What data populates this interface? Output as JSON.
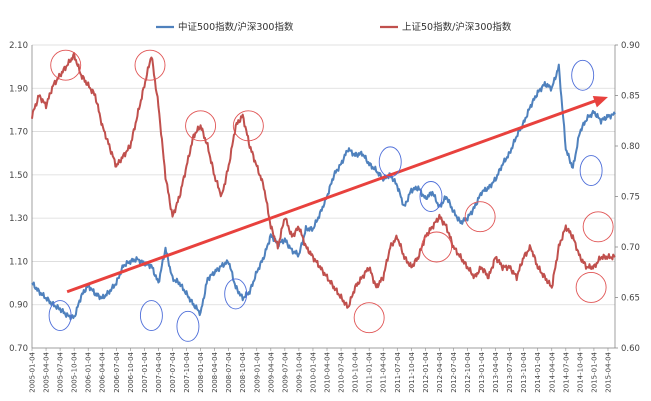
{
  "chart_data": {
    "type": "line",
    "legend": [
      {
        "name": "中证500指数/沪深300指数",
        "color": "#4f81bd",
        "axis": "left"
      },
      {
        "name": "上证50指数/沪深300指数",
        "color": "#c0504d",
        "axis": "right"
      }
    ],
    "legend_placement": "top",
    "grid": true,
    "left_axis": {
      "ticks": [
        "0.70",
        "0.90",
        "1.10",
        "1.30",
        "1.50",
        "1.70",
        "1.90",
        "2.10"
      ],
      "ylim": [
        0.7,
        2.1
      ]
    },
    "right_axis": {
      "ticks": [
        "0.60",
        "0.65",
        "0.70",
        "0.75",
        "0.80",
        "0.85",
        "0.90"
      ],
      "ylim": [
        0.6,
        0.9
      ]
    },
    "x_labels": [
      "2005-01-04",
      "2005-04-04",
      "2005-07-04",
      "2005-10-04",
      "2006-01-04",
      "2006-04-04",
      "2006-07-04",
      "2006-10-04",
      "2007-01-04",
      "2007-04-04",
      "2007-07-04",
      "2007-10-04",
      "2008-01-04",
      "2008-04-04",
      "2008-07-04",
      "2008-10-04",
      "2009-01-04",
      "2009-04-04",
      "2009-07-04",
      "2009-10-04",
      "2010-01-04",
      "2010-04-04",
      "2010-07-04",
      "2010-10-04",
      "2011-01-04",
      "2011-04-04",
      "2011-07-04",
      "2011-10-04",
      "2012-01-04",
      "2012-04-04",
      "2012-07-04",
      "2012-10-04",
      "2013-01-04",
      "2013-04-04",
      "2013-07-04",
      "2013-10-04",
      "2014-01-04",
      "2014-04-04",
      "2014-07-04",
      "2014-10-04",
      "2015-01-04",
      "2015-04-04"
    ],
    "series": [
      {
        "name": "中证500指数/沪深300指数",
        "axis": "left",
        "color": "#4f81bd",
        "x": [
          0,
          0.5,
          1,
          1.5,
          2,
          2.5,
          3,
          3.5,
          4,
          4.5,
          5,
          5.5,
          6,
          6.5,
          7,
          7.5,
          8,
          8.5,
          9,
          9.5,
          10,
          10.5,
          11,
          11.5,
          12,
          12.5,
          13,
          13.5,
          14,
          14.5,
          15,
          15.5,
          16,
          16.5,
          17,
          17.5,
          18,
          18.5,
          19,
          19.5,
          20,
          20.5,
          21,
          21.5,
          22,
          22.5,
          23,
          23.5,
          24,
          24.5,
          25,
          25.5,
          26,
          26.5,
          27,
          27.5,
          28,
          28.5,
          29,
          29.5,
          30,
          30.5,
          31,
          31.5,
          32,
          32.5,
          33,
          33.5,
          34,
          34.5,
          35,
          35.5,
          36,
          36.5,
          37,
          37.5,
          38,
          38.5,
          39,
          39.5,
          40,
          40.5,
          41,
          41.5
        ],
        "values": [
          1.0,
          0.96,
          0.93,
          0.9,
          0.88,
          0.85,
          0.84,
          0.94,
          0.99,
          0.95,
          0.93,
          0.96,
          1.0,
          1.08,
          1.1,
          1.11,
          1.09,
          1.08,
          1.0,
          1.16,
          1.02,
          1.0,
          0.95,
          0.9,
          0.86,
          1.02,
          1.05,
          1.08,
          1.1,
          0.98,
          0.93,
          0.96,
          1.05,
          1.12,
          1.22,
          1.18,
          1.2,
          1.15,
          1.13,
          1.25,
          1.25,
          1.32,
          1.4,
          1.5,
          1.55,
          1.62,
          1.59,
          1.6,
          1.55,
          1.52,
          1.48,
          1.5,
          1.45,
          1.35,
          1.43,
          1.44,
          1.39,
          1.42,
          1.35,
          1.4,
          1.33,
          1.28,
          1.3,
          1.35,
          1.42,
          1.44,
          1.48,
          1.55,
          1.6,
          1.68,
          1.74,
          1.82,
          1.88,
          1.92,
          1.9,
          2.0,
          1.62,
          1.53,
          1.7,
          1.76,
          1.79,
          1.75,
          1.77,
          1.78
        ]
      },
      {
        "name": "上证50指数/沪深300指数",
        "axis": "right",
        "color": "#c0504d",
        "x": [
          0,
          0.5,
          1,
          1.5,
          2,
          2.5,
          3,
          3.5,
          4,
          4.5,
          5,
          5.5,
          6,
          6.5,
          7,
          7.5,
          8,
          8.5,
          9,
          9.5,
          10,
          10.5,
          11,
          11.5,
          12,
          12.5,
          13,
          13.5,
          14,
          14.5,
          15,
          15.5,
          16,
          16.5,
          17,
          17.5,
          18,
          18.5,
          19,
          19.5,
          20,
          20.5,
          21,
          21.5,
          22,
          22.5,
          23,
          23.5,
          24,
          24.5,
          25,
          25.5,
          26,
          26.5,
          27,
          27.5,
          28,
          28.5,
          29,
          29.5,
          30,
          30.5,
          31,
          31.5,
          32,
          32.5,
          33,
          33.5,
          34,
          34.5,
          35,
          35.5,
          36,
          36.5,
          37,
          37.5,
          38,
          38.5,
          39,
          39.5,
          40,
          40.5,
          41,
          41.5
        ],
        "values": [
          0.83,
          0.85,
          0.84,
          0.86,
          0.87,
          0.88,
          0.89,
          0.87,
          0.86,
          0.85,
          0.82,
          0.8,
          0.78,
          0.79,
          0.8,
          0.83,
          0.86,
          0.89,
          0.84,
          0.77,
          0.73,
          0.75,
          0.78,
          0.81,
          0.82,
          0.8,
          0.77,
          0.75,
          0.78,
          0.82,
          0.83,
          0.8,
          0.78,
          0.76,
          0.72,
          0.7,
          0.73,
          0.71,
          0.72,
          0.7,
          0.69,
          0.68,
          0.67,
          0.66,
          0.65,
          0.64,
          0.66,
          0.67,
          0.68,
          0.66,
          0.67,
          0.7,
          0.71,
          0.69,
          0.68,
          0.69,
          0.71,
          0.72,
          0.73,
          0.72,
          0.7,
          0.69,
          0.68,
          0.67,
          0.68,
          0.67,
          0.69,
          0.68,
          0.68,
          0.67,
          0.69,
          0.7,
          0.68,
          0.67,
          0.66,
          0.7,
          0.72,
          0.71,
          0.69,
          0.68,
          0.68,
          0.69,
          0.69,
          0.69
        ]
      }
    ],
    "trend_arrow": {
      "x": [
        2.5,
        41.0
      ],
      "y_left": [
        0.96,
        1.86
      ]
    },
    "blue_circles": [
      [
        2.0,
        0.85
      ],
      [
        8.5,
        0.85
      ],
      [
        11.1,
        0.8
      ],
      [
        14.5,
        0.95
      ],
      [
        25.5,
        1.56
      ],
      [
        28.4,
        1.4
      ],
      [
        39.2,
        1.96
      ],
      [
        39.8,
        1.52
      ]
    ],
    "red_circles": [
      [
        2.4,
        0.88
      ],
      [
        8.4,
        0.88
      ],
      [
        12.0,
        0.82
      ],
      [
        15.4,
        0.82
      ],
      [
        24.0,
        0.63
      ],
      [
        28.8,
        0.7
      ],
      [
        31.9,
        0.73
      ],
      [
        40.3,
        0.72
      ],
      [
        39.8,
        0.66
      ]
    ]
  }
}
